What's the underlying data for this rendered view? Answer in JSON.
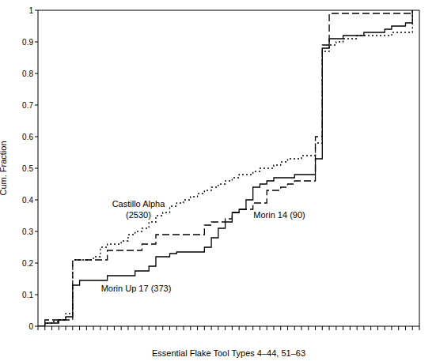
{
  "chart_data": {
    "type": "line",
    "x_label": "Essential Flake Tool Types 4–44, 51–63",
    "y_label": "Cum. Fraction",
    "x": [
      0,
      1,
      2,
      3,
      4,
      5,
      6,
      7,
      8,
      9,
      10,
      11,
      12,
      13,
      14,
      15,
      16,
      17,
      18,
      19,
      20,
      21,
      22,
      23,
      24,
      25,
      26,
      27,
      28,
      29,
      30,
      31,
      32,
      33,
      34,
      35,
      36,
      37,
      38,
      39,
      40,
      41,
      42,
      43,
      44,
      45,
      46,
      47,
      48,
      49,
      50,
      51,
      52,
      53,
      54
    ],
    "series": [
      {
        "name": "Castillo Alpha (2530)",
        "color": "#000000",
        "line_style": "dotted",
        "marker": "none",
        "values": [
          0,
          0.01,
          0.015,
          0.02,
          0.04,
          0.21,
          0.21,
          0.21,
          0.22,
          0.25,
          0.26,
          0.26,
          0.27,
          0.29,
          0.3,
          0.31,
          0.33,
          0.35,
          0.36,
          0.38,
          0.39,
          0.4,
          0.41,
          0.42,
          0.43,
          0.44,
          0.45,
          0.46,
          0.47,
          0.48,
          0.48,
          0.49,
          0.5,
          0.5,
          0.51,
          0.52,
          0.53,
          0.53,
          0.54,
          0.54,
          0.58,
          0.87,
          0.89,
          0.9,
          0.91,
          0.91,
          0.92,
          0.92,
          0.92,
          0.92,
          0.92,
          0.93,
          0.93,
          0.93,
          1
        ]
      },
      {
        "name": "Morin 14 (90)",
        "color": "#000000",
        "line_style": "dashed",
        "marker": "none",
        "values": [
          0,
          0.02,
          0.02,
          0.02,
          0.02,
          0.21,
          0.21,
          0.21,
          0.21,
          0.21,
          0.24,
          0.24,
          0.24,
          0.24,
          0.24,
          0.26,
          0.26,
          0.29,
          0.29,
          0.29,
          0.29,
          0.29,
          0.29,
          0.29,
          0.32,
          0.33,
          0.33,
          0.34,
          0.36,
          0.37,
          0.37,
          0.39,
          0.39,
          0.43,
          0.43,
          0.44,
          0.45,
          0.46,
          0.46,
          0.46,
          0.6,
          0.89,
          0.99,
          0.99,
          0.99,
          0.99,
          0.99,
          0.99,
          0.99,
          0.99,
          0.99,
          0.99,
          0.99,
          0.99,
          1
        ]
      },
      {
        "name": "Morin Up 17 (373)",
        "color": "#000000",
        "line_style": "solid",
        "marker": "none",
        "values": [
          0,
          0.01,
          0.01,
          0.02,
          0.03,
          0.13,
          0.145,
          0.145,
          0.145,
          0.145,
          0.16,
          0.16,
          0.16,
          0.16,
          0.175,
          0.175,
          0.19,
          0.22,
          0.22,
          0.23,
          0.235,
          0.235,
          0.235,
          0.235,
          0.25,
          0.28,
          0.31,
          0.33,
          0.36,
          0.37,
          0.4,
          0.44,
          0.45,
          0.46,
          0.47,
          0.47,
          0.47,
          0.48,
          0.48,
          0.48,
          0.53,
          0.88,
          0.91,
          0.91,
          0.92,
          0.92,
          0.92,
          0.93,
          0.93,
          0.93,
          0.94,
          0.95,
          0.95,
          0.96,
          1
        ]
      }
    ],
    "xlim": [
      0,
      55
    ],
    "xticks": [
      0,
      1,
      2,
      3,
      4,
      5,
      6,
      7,
      8,
      9,
      10,
      11,
      12,
      13,
      14,
      15,
      16,
      17,
      18,
      19,
      20,
      21,
      22,
      23,
      24,
      25,
      26,
      27,
      28,
      29,
      30,
      31,
      32,
      33,
      34,
      35,
      36,
      37,
      38,
      39,
      40,
      41,
      42,
      43,
      44,
      45,
      46,
      47,
      48,
      49,
      50,
      51,
      52,
      53,
      54,
      55
    ],
    "ylim": [
      0,
      1
    ],
    "yticks": [
      0,
      0.1,
      0.2,
      0.3,
      0.4,
      0.5,
      0.6,
      0.7,
      0.8,
      0.9,
      1
    ],
    "tick_labels": "y",
    "grid": false
  }
}
